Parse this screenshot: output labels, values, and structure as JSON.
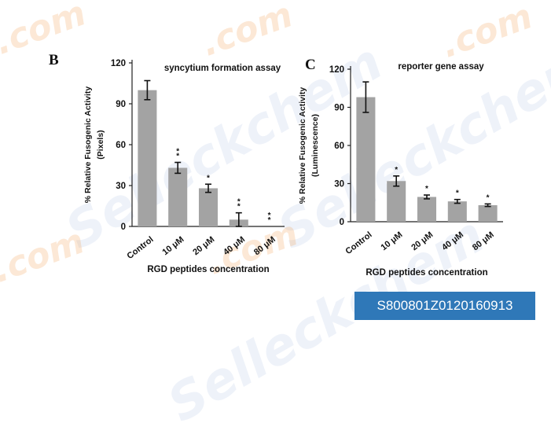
{
  "watermark": {
    "brand": "Selleckchem",
    "suffix": ".com"
  },
  "catalog_badge": {
    "text": "S800801Z0120160913",
    "color": "#2f78b8"
  },
  "colors": {
    "bar": "#a3a3a3",
    "axis": "#222222",
    "text": "#111111"
  },
  "chart_data": [
    {
      "panel": "B",
      "type": "bar",
      "title": "syncytium formation assay",
      "xlabel": "RGD peptides concentration",
      "ylabel": [
        "% Relative Fusogenic Activity",
        "(Pixels)"
      ],
      "categories": [
        "Control",
        "10 μM",
        "20 μM",
        "40 μM",
        "80 μM"
      ],
      "values": [
        100,
        43,
        28,
        5,
        0
      ],
      "errors": [
        7,
        4,
        3,
        5,
        0
      ],
      "significance": [
        "",
        "**",
        "*",
        "**",
        "**"
      ],
      "ylim": [
        0,
        120
      ],
      "yticks": [
        0,
        30,
        60,
        90,
        120
      ],
      "grid": false,
      "legend": "none"
    },
    {
      "panel": "C",
      "type": "bar",
      "title": "reporter gene assay",
      "xlabel": "RGD peptides concentration",
      "ylabel": [
        "% Relative Fusogenic Activity",
        "(Luminescence)"
      ],
      "categories": [
        "Control",
        "10 μM",
        "20 μM",
        "40 μM",
        "80 μM"
      ],
      "values": [
        98,
        32,
        19.5,
        16,
        13
      ],
      "errors": [
        12,
        4,
        1.5,
        1.5,
        1
      ],
      "significance": [
        "",
        "*",
        "*",
        "*",
        "*"
      ],
      "ylim": [
        0,
        120
      ],
      "yticks": [
        0,
        30,
        60,
        90,
        120
      ],
      "grid": false,
      "legend": "none"
    }
  ]
}
